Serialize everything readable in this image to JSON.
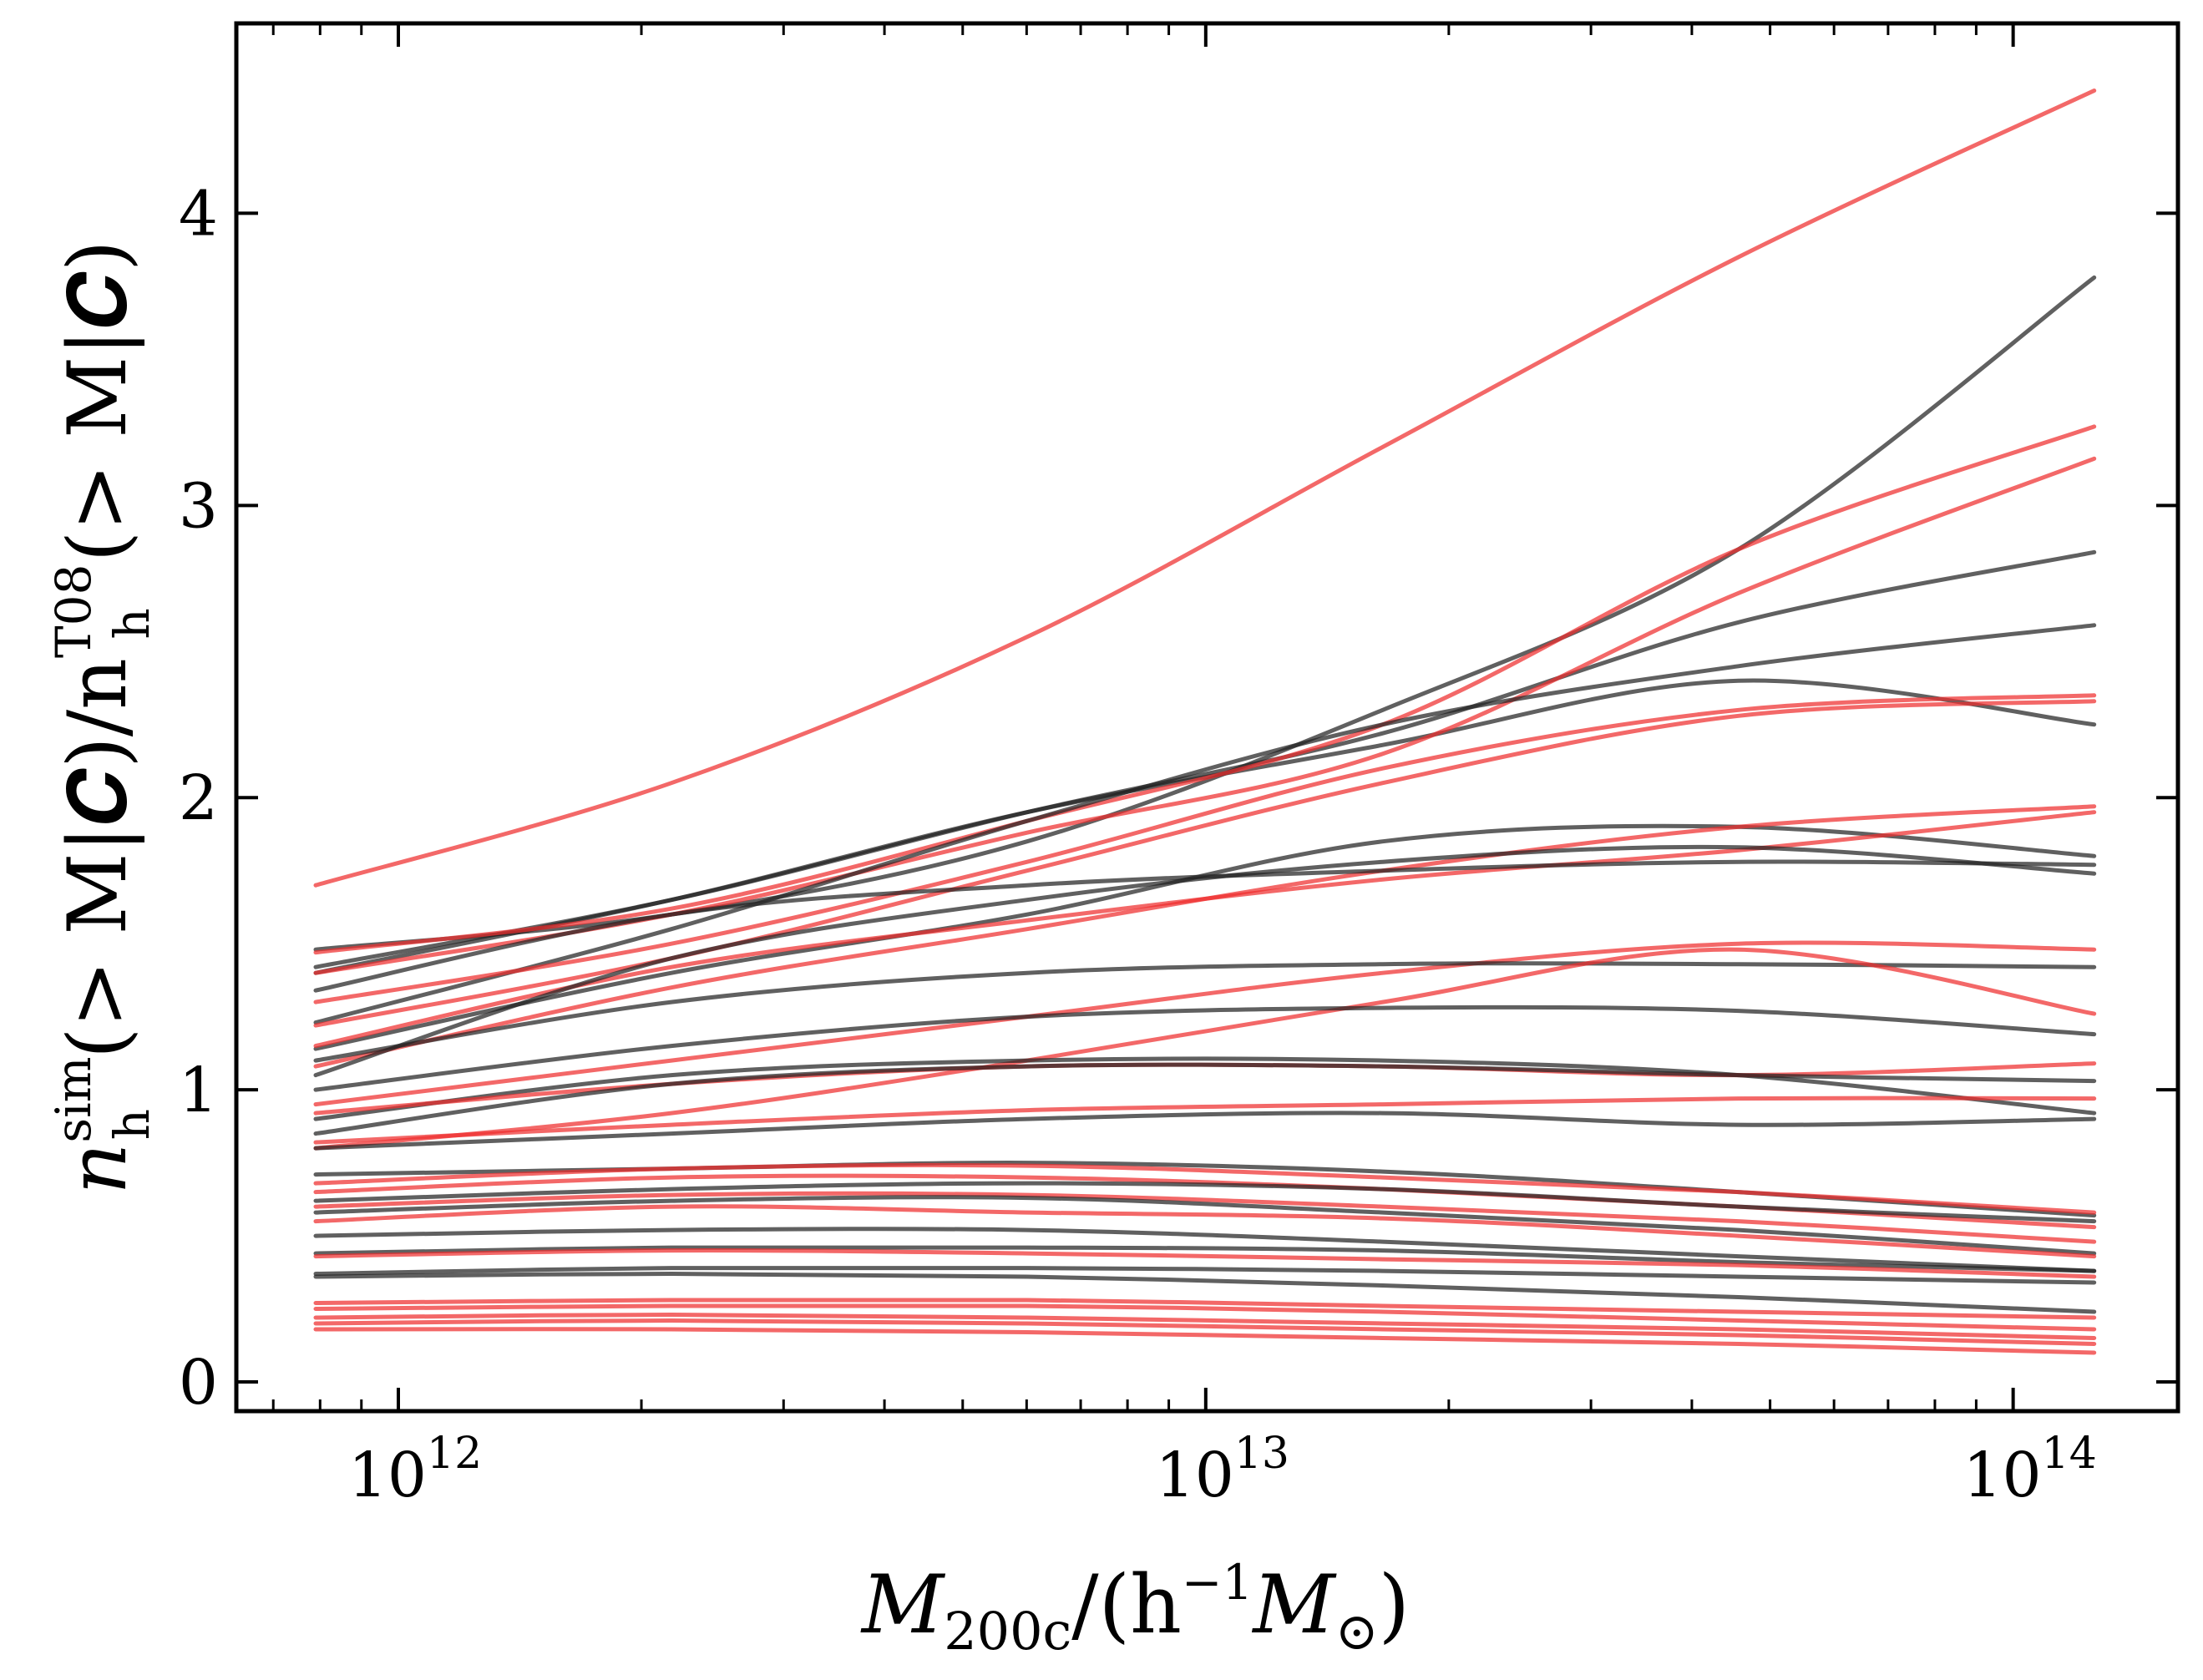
{
  "chart_data": {
    "type": "line",
    "title": "",
    "xscale": "log",
    "xlim": [
      630000000000.0,
      160000000000000.0
    ],
    "ylim": [
      -0.1,
      4.65
    ],
    "xlabel": {
      "main": "M",
      "sub": "200c",
      "rest": "/(h",
      "sup": "−1",
      "rest2": "M",
      "sub2": "⊙",
      "close": ")"
    },
    "ylabel": {
      "main": "n",
      "sup1": "sim",
      "sub1": "h",
      "mid": "(> M|𝑪)/n",
      "sup2": "T08",
      "sub2": "h",
      "end": "(> M|𝑪)"
    },
    "x_ticks": [
      {
        "value": 1000000000000.0,
        "base": "10",
        "exp": "12"
      },
      {
        "value": 10000000000000.0,
        "base": "10",
        "exp": "13"
      },
      {
        "value": 100000000000000.0,
        "base": "10",
        "exp": "14"
      }
    ],
    "y_ticks": [
      "0",
      "1",
      "2",
      "3",
      "4"
    ],
    "x_start": 790000000000.0,
    "x_end": 126000000000000.0,
    "colors": {
      "red": "#ee2e2e",
      "black": "#222222"
    },
    "series": [
      {
        "color": "red",
        "y": [
          1.7,
          2.05,
          2.55,
          3.2,
          3.85,
          4.42
        ]
      },
      {
        "color": "black",
        "y": [
          1.48,
          1.6,
          1.85,
          2.3,
          2.85,
          3.78
        ]
      },
      {
        "color": "black",
        "y": [
          1.4,
          1.65,
          1.95,
          2.18,
          2.4,
          2.25
        ]
      },
      {
        "color": "black",
        "y": [
          1.42,
          1.65,
          1.95,
          2.22,
          2.6,
          2.84
        ]
      },
      {
        "color": "red",
        "y": [
          1.47,
          1.62,
          1.92,
          2.25,
          2.85,
          3.27
        ]
      },
      {
        "color": "red",
        "y": [
          1.4,
          1.6,
          1.88,
          2.15,
          2.7,
          3.16
        ]
      },
      {
        "color": "black",
        "y": [
          1.23,
          1.55,
          1.92,
          2.25,
          2.45,
          2.59
        ]
      },
      {
        "color": "red",
        "y": [
          1.22,
          1.45,
          1.75,
          2.05,
          2.28,
          2.33
        ]
      },
      {
        "color": "red",
        "y": [
          1.3,
          1.5,
          1.78,
          2.1,
          2.3,
          2.35
        ]
      },
      {
        "color": "black",
        "y": [
          1.14,
          1.4,
          1.6,
          1.85,
          1.9,
          1.8
        ]
      },
      {
        "color": "red",
        "y": [
          1.08,
          1.35,
          1.55,
          1.75,
          1.9,
          1.97
        ]
      },
      {
        "color": "red",
        "y": [
          1.15,
          1.42,
          1.58,
          1.72,
          1.82,
          1.95
        ]
      },
      {
        "color": "black",
        "y": [
          1.05,
          1.45,
          1.65,
          1.78,
          1.83,
          1.74
        ]
      },
      {
        "color": "black",
        "y": [
          1.34,
          1.6,
          1.7,
          1.75,
          1.78,
          1.77
        ]
      },
      {
        "color": "red",
        "y": [
          0.95,
          1.1,
          1.25,
          1.4,
          1.5,
          1.48
        ]
      },
      {
        "color": "black",
        "y": [
          1.1,
          1.3,
          1.4,
          1.43,
          1.43,
          1.42
        ]
      },
      {
        "color": "red",
        "y": [
          0.8,
          0.92,
          1.1,
          1.3,
          1.48,
          1.26
        ]
      },
      {
        "color": "black",
        "y": [
          1.0,
          1.15,
          1.25,
          1.28,
          1.27,
          1.19
        ]
      },
      {
        "color": "black",
        "y": [
          0.9,
          1.05,
          1.1,
          1.1,
          1.05,
          0.92
        ]
      },
      {
        "color": "red",
        "y": [
          0.92,
          1.02,
          1.08,
          1.08,
          1.05,
          1.09
        ]
      },
      {
        "color": "black",
        "y": [
          0.85,
          1.02,
          1.08,
          1.08,
          1.05,
          1.03
        ]
      },
      {
        "color": "red",
        "y": [
          0.82,
          0.88,
          0.93,
          0.95,
          0.97,
          0.97
        ]
      },
      {
        "color": "black",
        "y": [
          0.8,
          0.85,
          0.9,
          0.92,
          0.88,
          0.9
        ]
      },
      {
        "color": "black",
        "y": [
          0.71,
          0.73,
          0.75,
          0.72,
          0.65,
          0.57
        ]
      },
      {
        "color": "red",
        "y": [
          0.68,
          0.73,
          0.74,
          0.7,
          0.65,
          0.58
        ]
      },
      {
        "color": "red",
        "y": [
          0.65,
          0.7,
          0.7,
          0.66,
          0.6,
          0.53
        ]
      },
      {
        "color": "black",
        "y": [
          0.62,
          0.66,
          0.68,
          0.66,
          0.6,
          0.55
        ]
      },
      {
        "color": "red",
        "y": [
          0.6,
          0.64,
          0.64,
          0.6,
          0.55,
          0.48
        ]
      },
      {
        "color": "black",
        "y": [
          0.58,
          0.62,
          0.63,
          0.58,
          0.52,
          0.44
        ]
      },
      {
        "color": "red",
        "y": [
          0.55,
          0.6,
          0.58,
          0.56,
          0.5,
          0.43
        ]
      },
      {
        "color": "black",
        "y": [
          0.5,
          0.52,
          0.52,
          0.48,
          0.43,
          0.38
        ]
      },
      {
        "color": "black",
        "y": [
          0.44,
          0.46,
          0.46,
          0.45,
          0.41,
          0.38
        ]
      },
      {
        "color": "red",
        "y": [
          0.43,
          0.45,
          0.44,
          0.42,
          0.4,
          0.36
        ]
      },
      {
        "color": "black",
        "y": [
          0.37,
          0.39,
          0.39,
          0.38,
          0.36,
          0.34
        ]
      },
      {
        "color": "black",
        "y": [
          0.36,
          0.37,
          0.36,
          0.33,
          0.29,
          0.24
        ]
      },
      {
        "color": "red",
        "y": [
          0.27,
          0.28,
          0.28,
          0.26,
          0.24,
          0.22
        ]
      },
      {
        "color": "red",
        "y": [
          0.25,
          0.26,
          0.26,
          0.24,
          0.21,
          0.18
        ]
      },
      {
        "color": "red",
        "y": [
          0.22,
          0.23,
          0.22,
          0.2,
          0.18,
          0.15
        ]
      },
      {
        "color": "red",
        "y": [
          0.2,
          0.21,
          0.2,
          0.18,
          0.16,
          0.13
        ]
      },
      {
        "color": "red",
        "y": [
          0.18,
          0.18,
          0.17,
          0.15,
          0.13,
          0.1
        ]
      }
    ]
  }
}
